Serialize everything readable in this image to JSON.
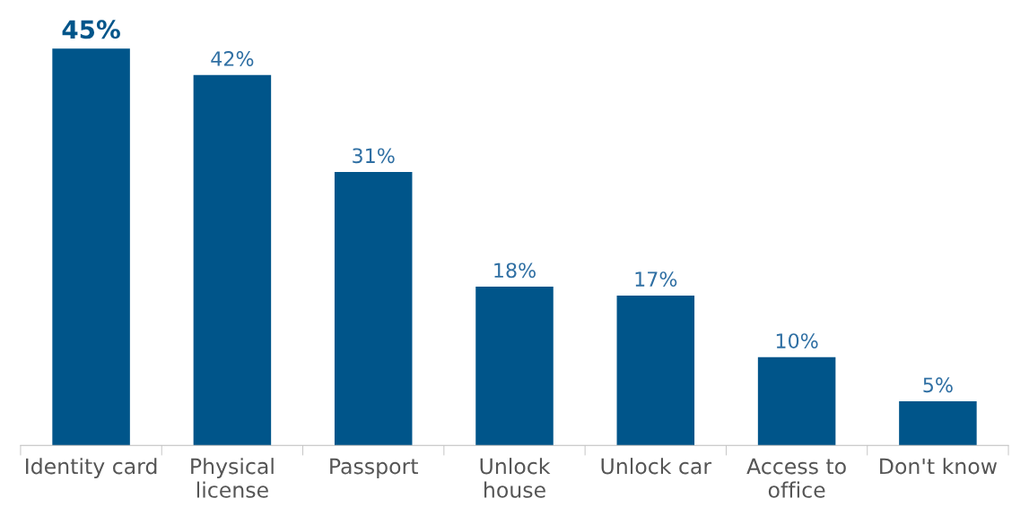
{
  "chart_data": {
    "type": "bar",
    "categories": [
      "Identity card",
      "Physical\nlicense",
      "Passport",
      "Unlock\nhouse",
      "Unlock car",
      "Access to\noffice",
      "Don't know"
    ],
    "values": [
      45,
      42,
      31,
      18,
      17,
      10,
      5
    ],
    "value_labels": [
      "45%",
      "42%",
      "31%",
      "18%",
      "17%",
      "10%",
      "5%"
    ],
    "color": "#00558a",
    "grid": false,
    "legend": false
  }
}
